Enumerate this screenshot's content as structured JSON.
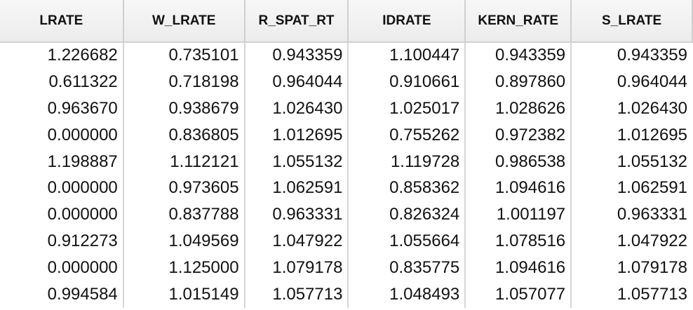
{
  "table": {
    "columns": [
      "LRATE",
      "W_LRATE",
      "R_SPAT_RT",
      "IDRATE",
      "KERN_RATE",
      "S_LRATE"
    ],
    "rows": [
      [
        "1.226682",
        "0.735101",
        "0.943359",
        "1.100447",
        "0.943359",
        "0.943359"
      ],
      [
        "0.611322",
        "0.718198",
        "0.964044",
        "0.910661",
        "0.897860",
        "0.964044"
      ],
      [
        "0.963670",
        "0.938679",
        "1.026430",
        "1.025017",
        "1.028626",
        "1.026430"
      ],
      [
        "0.000000",
        "0.836805",
        "1.012695",
        "0.755262",
        "0.972382",
        "1.012695"
      ],
      [
        "1.198887",
        "1.112121",
        "1.055132",
        "1.119728",
        "0.986538",
        "1.055132"
      ],
      [
        "0.000000",
        "0.973605",
        "1.062591",
        "0.858362",
        "1.094616",
        "1.062591"
      ],
      [
        "0.000000",
        "0.837788",
        "0.963331",
        "0.826324",
        "1.001197",
        "0.963331"
      ],
      [
        "0.912273",
        "1.049569",
        "1.047922",
        "1.055664",
        "1.078516",
        "1.047922"
      ],
      [
        "0.000000",
        "1.125000",
        "1.079178",
        "0.835775",
        "1.094616",
        "1.079178"
      ],
      [
        "0.994584",
        "1.015149",
        "1.057713",
        "1.048493",
        "1.057077",
        "1.057713"
      ]
    ]
  }
}
